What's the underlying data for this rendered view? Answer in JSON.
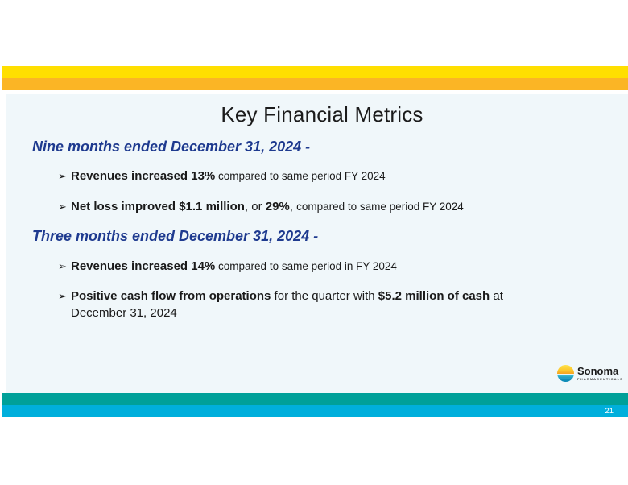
{
  "slide": {
    "title": "Key Financial Metrics",
    "bullet_glyph": "➢",
    "sections": [
      {
        "heading": "Nine months ended December 31, 2024 -",
        "bullets": [
          {
            "segments": [
              {
                "text": "Revenues increased 13%"
              },
              {
                "text": " compared to same period FY 2024"
              }
            ]
          },
          {
            "segments": [
              {
                "text": "Net loss improved $1.1 million"
              },
              {
                "text": ", or "
              },
              {
                "text": "29%"
              },
              {
                "text": ", "
              },
              {
                "text": " compared to same period FY 2024"
              }
            ]
          }
        ]
      },
      {
        "heading": "Three months ended December 31, 2024 -",
        "bullets": [
          {
            "segments": [
              {
                "text": "Revenues increased 14%"
              },
              {
                "text": " compared to same period in FY 2024"
              }
            ]
          },
          {
            "segments": [
              {
                "text": "Positive cash flow from operations"
              },
              {
                "text": " for the quarter with "
              },
              {
                "text": "$5.2 million of cash"
              },
              {
                "text": " at December 31, 2024"
              }
            ]
          }
        ]
      }
    ],
    "logo": {
      "name": "Sonoma",
      "subtext": "PHARMACEUTICALS"
    },
    "footer": {
      "page_number": "21"
    },
    "colors": {
      "yellow_bar": "#FFDF00",
      "amber_bar": "#FBB525",
      "panel_bg": "#F0F7FA",
      "teal_bar": "#00A099",
      "cyan_bar": "#00AFDC",
      "heading_blue": "#1E3A8F"
    }
  }
}
